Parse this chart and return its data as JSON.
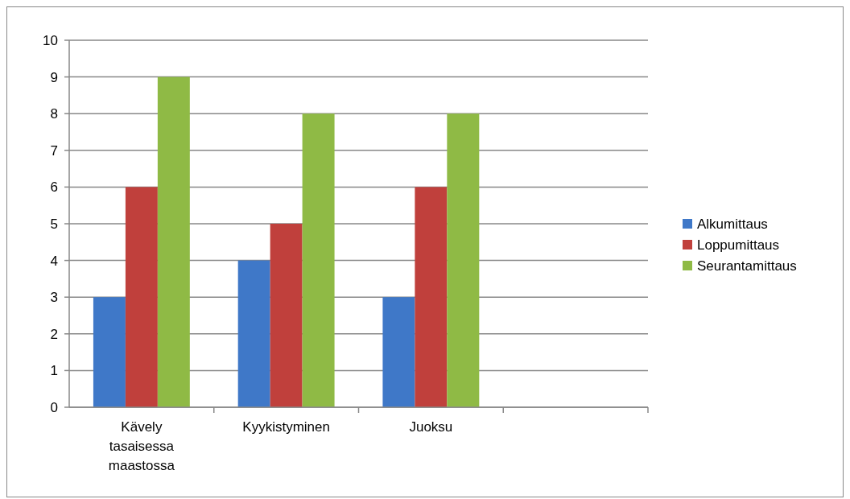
{
  "chart_data": {
    "type": "bar",
    "categories": [
      "Kävely tasaisessa maastossa",
      "Kyykistyminen",
      "Juoksu",
      null
    ],
    "series": [
      {
        "name": "Alkumittaus",
        "color": "#3f78c8",
        "values": [
          3,
          4,
          3,
          null
        ]
      },
      {
        "name": "Loppumittaus",
        "color": "#c0403c",
        "values": [
          6,
          5,
          6,
          null
        ]
      },
      {
        "name": "Seurantamittaus",
        "color": "#8fba45",
        "values": [
          9,
          8,
          8,
          null
        ]
      }
    ],
    "ylim": [
      0,
      10
    ],
    "yticks": [
      0,
      1,
      2,
      3,
      4,
      5,
      6,
      7,
      8,
      9,
      10
    ],
    "grid": "y",
    "legend": "right"
  }
}
